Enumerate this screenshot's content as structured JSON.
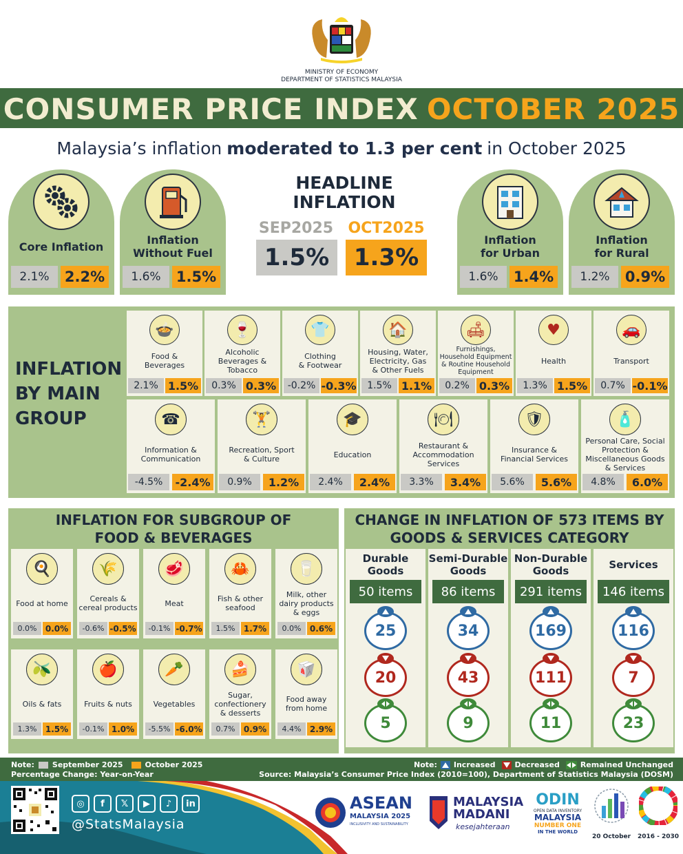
{
  "header": {
    "ministry_line1": "MINISTRY OF ECONOMY",
    "ministry_line2": "DEPARTMENT OF STATISTICS MALAYSIA",
    "title_main": "CONSUMER PRICE INDEX",
    "title_accent": "OCTOBER 2025",
    "subtitle_pre": "Malaysia’s inflation",
    "subtitle_bold": "moderated to 1.3 per cent",
    "subtitle_post": "in October 2025"
  },
  "headline": {
    "title_line1": "HEADLINE",
    "title_line2": "INFLATION",
    "prev_label": "SEP2025",
    "curr_label": "OCT2025",
    "prev_value": "1.5%",
    "curr_value": "1.3%",
    "cards": [
      {
        "label1": "Core Inflation",
        "label2": "",
        "prev": "2.1%",
        "curr": "2.2%",
        "icon": "gears-icon"
      },
      {
        "label1": "Inflation",
        "label2": "Without Fuel",
        "prev": "1.6%",
        "curr": "1.5%",
        "icon": "fuel-pump-icon"
      },
      {
        "label1": "Inflation",
        "label2": "for Urban",
        "prev": "1.6%",
        "curr": "1.4%",
        "icon": "building-icon"
      },
      {
        "label1": "Inflation",
        "label2": "for Rural",
        "prev": "1.2%",
        "curr": "0.9%",
        "icon": "house-icon"
      }
    ]
  },
  "main_groups": {
    "title_line1": "INFLATION",
    "title_line2": "BY MAIN",
    "title_line3": "GROUP",
    "row1": [
      {
        "name": "Food &\nBeverages",
        "prev": "2.1%",
        "curr": "1.5%",
        "icon": "food-bowl-icon"
      },
      {
        "name": "Alcoholic\nBeverages &\nTobacco",
        "prev": "0.3%",
        "curr": "0.3%",
        "icon": "bottle-icon"
      },
      {
        "name": "Clothing\n& Footwear",
        "prev": "-0.2%",
        "curr": "-0.3%",
        "icon": "clothing-icon"
      },
      {
        "name": "Housing, Water,\nElectricity, Gas\n& Other Fuels",
        "prev": "1.5%",
        "curr": "1.1%",
        "icon": "housing-icon"
      },
      {
        "name": "Furnishings,\nHousehold Equipment\n& Routine Household\nEquipment",
        "prev": "0.2%",
        "curr": "0.3%",
        "icon": "furniture-icon"
      },
      {
        "name": "Health",
        "prev": "1.3%",
        "curr": "1.5%",
        "icon": "health-icon"
      },
      {
        "name": "Transport",
        "prev": "0.7%",
        "curr": "-0.1%",
        "icon": "transport-icon"
      }
    ],
    "row2": [
      {
        "name": "Information &\nCommunication",
        "prev": "-4.5%",
        "curr": "-2.4%",
        "icon": "phone-icon"
      },
      {
        "name": "Recreation, Sport\n& Culture",
        "prev": "0.9%",
        "curr": "1.2%",
        "icon": "dumbbell-icon"
      },
      {
        "name": "Education",
        "prev": "2.4%",
        "curr": "2.4%",
        "icon": "graduation-cap-icon"
      },
      {
        "name": "Restaurant &\nAccommodation\nServices",
        "prev": "3.3%",
        "curr": "3.4%",
        "icon": "restaurant-icon"
      },
      {
        "name": "Insurance &\nFinancial Services",
        "prev": "5.6%",
        "curr": "5.6%",
        "icon": "insurance-icon"
      },
      {
        "name": "Personal Care, Social\nProtection &\nMiscellaneous Goods\n& Services",
        "prev": "4.8%",
        "curr": "6.0%",
        "icon": "personal-care-icon"
      }
    ]
  },
  "subgroups": {
    "title_line1": "INFLATION FOR SUBGROUP OF",
    "title_line2": "FOOD & BEVERAGES",
    "items": [
      {
        "name": "Food at home",
        "prev": "0.0%",
        "curr": "0.0%",
        "icon": "cooking-pot-icon"
      },
      {
        "name": "Cereals &\ncereal products",
        "prev": "-0.6%",
        "curr": "-0.5%",
        "icon": "cereal-icon"
      },
      {
        "name": "Meat",
        "prev": "-0.1%",
        "curr": "-0.7%",
        "icon": "meat-icon"
      },
      {
        "name": "Fish & other\nseafood",
        "prev": "1.5%",
        "curr": "1.7%",
        "icon": "crab-icon"
      },
      {
        "name": "Milk, other\ndairy products\n& eggs",
        "prev": "0.0%",
        "curr": "0.6%",
        "icon": "dairy-icon"
      },
      {
        "name": "Oils & fats",
        "prev": "1.3%",
        "curr": "1.5%",
        "icon": "oil-icon"
      },
      {
        "name": "Fruits & nuts",
        "prev": "-0.1%",
        "curr": "1.0%",
        "icon": "fruit-icon"
      },
      {
        "name": "Vegetables",
        "prev": "-5.5%",
        "curr": "-6.0%",
        "icon": "vegetable-icon"
      },
      {
        "name": "Sugar,\nconfectionery\n& desserts",
        "prev": "0.7%",
        "curr": "0.9%",
        "icon": "dessert-icon"
      },
      {
        "name": "Food away\nfrom home",
        "prev": "4.4%",
        "curr": "2.9%",
        "icon": "takeaway-icon"
      }
    ]
  },
  "items_change": {
    "title_line1": "CHANGE IN INFLATION OF 573 ITEMS BY",
    "title_line2": "GOODS & SERVICES CATEGORY",
    "columns": [
      {
        "head1": "Durable",
        "head2": "Goods",
        "total": "50 items",
        "up": "25",
        "down": "20",
        "same": "5"
      },
      {
        "head1": "Semi-Durable",
        "head2": "Goods",
        "total": "86 items",
        "up": "34",
        "down": "43",
        "same": "9"
      },
      {
        "head1": "Non-Durable",
        "head2": "Goods",
        "total": "291 items",
        "up": "169",
        "down": "111",
        "same": "11"
      },
      {
        "head1": "Services",
        "head2": "",
        "total": "146 items",
        "up": "116",
        "down": "7",
        "same": "23"
      }
    ]
  },
  "notes": {
    "note_label": "Note:",
    "legend_sep": "September 2025",
    "legend_oct": "October 2025",
    "pct_change": "Percentage Change: Year-on-Year",
    "legend_note": "Note:",
    "increased": "Increased",
    "decreased": "Decreased",
    "unchanged": "Remained Unchanged",
    "source": "Source: Malaysia’s Consumer Price Index (2010=100), Department of Statistics Malaysia (DOSM)"
  },
  "footer": {
    "handle": "@StatsMalaysia",
    "asean_line1": "ASEAN",
    "asean_line2": "MALAYSIA 2025",
    "asean_line3": "INCLUSIVITY AND SUSTAINABILITY",
    "madani_line1": "MALAYSIA",
    "madani_line2": "MADANI",
    "madani_line3": "kesejahteraan",
    "odin_line1": "ODIN",
    "odin_line2": "OPEN DATA INVENTORY",
    "odin_line3": "MALAYSIA",
    "odin_line4": "NUMBER ONE",
    "odin_line5": "IN THE WORLD",
    "statday_date": "20 October",
    "sdg_years": "2016 - 2030"
  },
  "colors": {
    "green_dark": "#3f6b3f",
    "green_light": "#a9c38c",
    "orange": "#f6a41c",
    "gray": "#c9c9c5",
    "increase": "#2f6aa3",
    "decrease": "#b0281e",
    "unchanged": "#3f8a3a"
  }
}
